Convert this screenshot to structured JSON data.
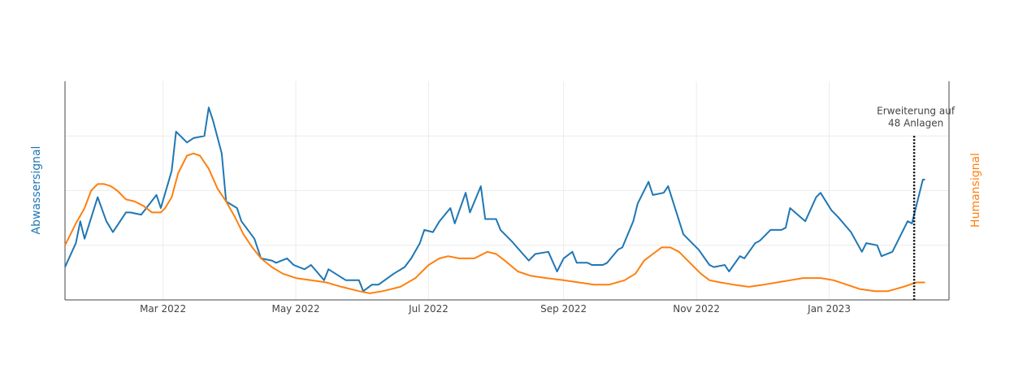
{
  "chart_data": {
    "type": "line",
    "title": "",
    "xlabel": "",
    "y_left_label": "Abwassersignal",
    "y_right_label": "Humansignal",
    "x_range": [
      "2022-01-15",
      "2023-02-25"
    ],
    "y_left_range": [
      0,
      1
    ],
    "y_right_range": [
      0,
      1
    ],
    "grid": true,
    "x_ticks": [
      {
        "date": "2022-03-01",
        "label": "Mar 2022"
      },
      {
        "date": "2022-05-01",
        "label": "May 2022"
      },
      {
        "date": "2022-07-01",
        "label": "Jul 2022"
      },
      {
        "date": "2022-09-01",
        "label": "Sep 2022"
      },
      {
        "date": "2022-11-01",
        "label": "Nov 2022"
      },
      {
        "date": "2023-01-01",
        "label": "Jan 2023"
      }
    ],
    "colors": {
      "abwasser": "#1f77b4",
      "human": "#ff7f0e",
      "annotation": "#000000"
    },
    "series": [
      {
        "axis": "left",
        "color": "#1f77b4",
        "points": [
          [
            "2022-01-15",
            0.15
          ],
          [
            "2022-01-20",
            0.26
          ],
          [
            "2022-01-22",
            0.36
          ],
          [
            "2022-01-24",
            0.28
          ],
          [
            "2022-01-30",
            0.47
          ],
          [
            "2022-02-03",
            0.36
          ],
          [
            "2022-02-06",
            0.31
          ],
          [
            "2022-02-12",
            0.4
          ],
          [
            "2022-02-14",
            0.4
          ],
          [
            "2022-02-19",
            0.39
          ],
          [
            "2022-02-26",
            0.48
          ],
          [
            "2022-02-28",
            0.42
          ],
          [
            "2022-03-05",
            0.59
          ],
          [
            "2022-03-07",
            0.77
          ],
          [
            "2022-03-12",
            0.72
          ],
          [
            "2022-03-15",
            0.74
          ],
          [
            "2022-03-20",
            0.75
          ],
          [
            "2022-03-22",
            0.88
          ],
          [
            "2022-03-24",
            0.82
          ],
          [
            "2022-03-28",
            0.67
          ],
          [
            "2022-03-30",
            0.45
          ],
          [
            "2022-04-04",
            0.42
          ],
          [
            "2022-04-06",
            0.36
          ],
          [
            "2022-04-12",
            0.28
          ],
          [
            "2022-04-15",
            0.19
          ],
          [
            "2022-04-20",
            0.18
          ],
          [
            "2022-04-22",
            0.17
          ],
          [
            "2022-04-27",
            0.19
          ],
          [
            "2022-04-30",
            0.16
          ],
          [
            "2022-05-05",
            0.14
          ],
          [
            "2022-05-08",
            0.16
          ],
          [
            "2022-05-14",
            0.09
          ],
          [
            "2022-05-16",
            0.14
          ],
          [
            "2022-05-24",
            0.09
          ],
          [
            "2022-05-30",
            0.09
          ],
          [
            "2022-06-01",
            0.04
          ],
          [
            "2022-06-05",
            0.07
          ],
          [
            "2022-06-08",
            0.07
          ],
          [
            "2022-06-15",
            0.12
          ],
          [
            "2022-06-20",
            0.15
          ],
          [
            "2022-06-23",
            0.19
          ],
          [
            "2022-06-27",
            0.26
          ],
          [
            "2022-06-29",
            0.32
          ],
          [
            "2022-07-03",
            0.31
          ],
          [
            "2022-07-06",
            0.36
          ],
          [
            "2022-07-11",
            0.42
          ],
          [
            "2022-07-13",
            0.35
          ],
          [
            "2022-07-18",
            0.49
          ],
          [
            "2022-07-20",
            0.4
          ],
          [
            "2022-07-25",
            0.52
          ],
          [
            "2022-07-27",
            0.37
          ],
          [
            "2022-08-01",
            0.37
          ],
          [
            "2022-08-03",
            0.32
          ],
          [
            "2022-08-08",
            0.27
          ],
          [
            "2022-08-16",
            0.18
          ],
          [
            "2022-08-19",
            0.21
          ],
          [
            "2022-08-25",
            0.22
          ],
          [
            "2022-08-29",
            0.13
          ],
          [
            "2022-09-01",
            0.19
          ],
          [
            "2022-09-05",
            0.22
          ],
          [
            "2022-09-07",
            0.17
          ],
          [
            "2022-09-12",
            0.17
          ],
          [
            "2022-09-14",
            0.16
          ],
          [
            "2022-09-19",
            0.16
          ],
          [
            "2022-09-21",
            0.17
          ],
          [
            "2022-09-26",
            0.23
          ],
          [
            "2022-09-28",
            0.24
          ],
          [
            "2022-10-03",
            0.36
          ],
          [
            "2022-10-05",
            0.44
          ],
          [
            "2022-10-10",
            0.54
          ],
          [
            "2022-10-12",
            0.48
          ],
          [
            "2022-10-17",
            0.49
          ],
          [
            "2022-10-19",
            0.52
          ],
          [
            "2022-10-26",
            0.3
          ],
          [
            "2022-10-31",
            0.25
          ],
          [
            "2022-11-02",
            0.23
          ],
          [
            "2022-11-07",
            0.16
          ],
          [
            "2022-11-09",
            0.15
          ],
          [
            "2022-11-14",
            0.16
          ],
          [
            "2022-11-16",
            0.13
          ],
          [
            "2022-11-21",
            0.2
          ],
          [
            "2022-11-23",
            0.19
          ],
          [
            "2022-11-28",
            0.26
          ],
          [
            "2022-11-30",
            0.27
          ],
          [
            "2022-12-05",
            0.32
          ],
          [
            "2022-12-07",
            0.32
          ],
          [
            "2022-12-10",
            0.32
          ],
          [
            "2022-12-12",
            0.33
          ],
          [
            "2022-12-14",
            0.42
          ],
          [
            "2022-12-21",
            0.36
          ],
          [
            "2022-12-26",
            0.47
          ],
          [
            "2022-12-28",
            0.49
          ],
          [
            "2023-01-02",
            0.41
          ],
          [
            "2023-01-05",
            0.38
          ],
          [
            "2023-01-11",
            0.31
          ],
          [
            "2023-01-16",
            0.22
          ],
          [
            "2023-01-18",
            0.26
          ],
          [
            "2023-01-23",
            0.25
          ],
          [
            "2023-01-25",
            0.2
          ],
          [
            "2023-01-30",
            0.22
          ],
          [
            "2023-02-06",
            0.36
          ],
          [
            "2023-02-08",
            0.35
          ],
          [
            "2023-02-13",
            0.55
          ],
          [
            "2023-02-14",
            0.55
          ]
        ]
      },
      {
        "axis": "right",
        "color": "#ff7f0e",
        "points": [
          [
            "2022-01-15",
            0.25
          ],
          [
            "2022-01-20",
            0.35
          ],
          [
            "2022-01-24",
            0.42
          ],
          [
            "2022-01-27",
            0.5
          ],
          [
            "2022-01-30",
            0.53
          ],
          [
            "2022-02-02",
            0.53
          ],
          [
            "2022-02-05",
            0.52
          ],
          [
            "2022-02-08",
            0.5
          ],
          [
            "2022-02-12",
            0.46
          ],
          [
            "2022-02-16",
            0.45
          ],
          [
            "2022-02-20",
            0.43
          ],
          [
            "2022-02-24",
            0.4
          ],
          [
            "2022-02-28",
            0.4
          ],
          [
            "2022-03-02",
            0.42
          ],
          [
            "2022-03-05",
            0.47
          ],
          [
            "2022-03-08",
            0.58
          ],
          [
            "2022-03-12",
            0.66
          ],
          [
            "2022-03-15",
            0.67
          ],
          [
            "2022-03-18",
            0.66
          ],
          [
            "2022-03-22",
            0.6
          ],
          [
            "2022-03-26",
            0.51
          ],
          [
            "2022-03-30",
            0.45
          ],
          [
            "2022-04-03",
            0.38
          ],
          [
            "2022-04-07",
            0.3
          ],
          [
            "2022-04-11",
            0.24
          ],
          [
            "2022-04-15",
            0.19
          ],
          [
            "2022-04-20",
            0.15
          ],
          [
            "2022-04-25",
            0.12
          ],
          [
            "2022-05-01",
            0.1
          ],
          [
            "2022-05-08",
            0.09
          ],
          [
            "2022-05-15",
            0.08
          ],
          [
            "2022-05-22",
            0.06
          ],
          [
            "2022-05-30",
            0.04
          ],
          [
            "2022-06-04",
            0.03
          ],
          [
            "2022-06-10",
            0.04
          ],
          [
            "2022-06-18",
            0.06
          ],
          [
            "2022-06-25",
            0.1
          ],
          [
            "2022-07-01",
            0.16
          ],
          [
            "2022-07-06",
            0.19
          ],
          [
            "2022-07-10",
            0.2
          ],
          [
            "2022-07-15",
            0.19
          ],
          [
            "2022-07-22",
            0.19
          ],
          [
            "2022-07-28",
            0.22
          ],
          [
            "2022-08-01",
            0.21
          ],
          [
            "2022-08-05",
            0.18
          ],
          [
            "2022-08-11",
            0.13
          ],
          [
            "2022-08-17",
            0.11
          ],
          [
            "2022-08-24",
            0.1
          ],
          [
            "2022-09-01",
            0.09
          ],
          [
            "2022-09-08",
            0.08
          ],
          [
            "2022-09-15",
            0.07
          ],
          [
            "2022-09-22",
            0.07
          ],
          [
            "2022-09-29",
            0.09
          ],
          [
            "2022-10-04",
            0.12
          ],
          [
            "2022-10-08",
            0.18
          ],
          [
            "2022-10-12",
            0.21
          ],
          [
            "2022-10-16",
            0.24
          ],
          [
            "2022-10-20",
            0.24
          ],
          [
            "2022-10-24",
            0.22
          ],
          [
            "2022-10-29",
            0.17
          ],
          [
            "2022-11-03",
            0.12
          ],
          [
            "2022-11-07",
            0.09
          ],
          [
            "2022-11-12",
            0.08
          ],
          [
            "2022-11-18",
            0.07
          ],
          [
            "2022-11-25",
            0.06
          ],
          [
            "2022-12-02",
            0.07
          ],
          [
            "2022-12-08",
            0.08
          ],
          [
            "2022-12-14",
            0.09
          ],
          [
            "2022-12-20",
            0.1
          ],
          [
            "2022-12-28",
            0.1
          ],
          [
            "2023-01-03",
            0.09
          ],
          [
            "2023-01-09",
            0.07
          ],
          [
            "2023-01-15",
            0.05
          ],
          [
            "2023-01-22",
            0.04
          ],
          [
            "2023-01-28",
            0.04
          ],
          [
            "2023-02-04",
            0.06
          ],
          [
            "2023-02-10",
            0.08
          ],
          [
            "2023-02-14",
            0.08
          ]
        ]
      }
    ],
    "annotation": {
      "date": "2023-02-09",
      "y_top": 0.75,
      "line_style": "dotted",
      "lines": [
        "Erweiterung auf",
        "48 Anlagen"
      ]
    }
  }
}
